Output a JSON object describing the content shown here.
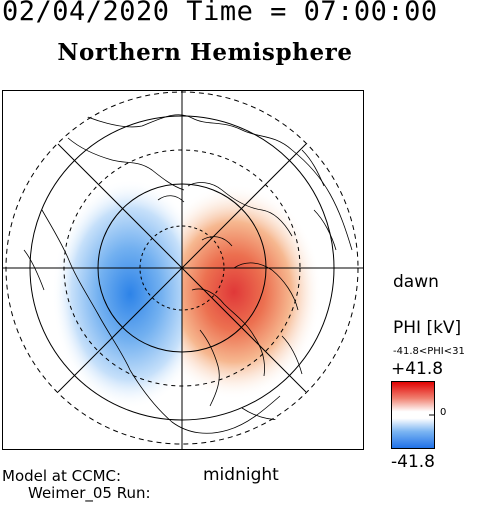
{
  "header": {
    "title": "02/04/2020 Time = 07:00:00",
    "subtitle": "Northern Hemisphere"
  },
  "map": {
    "direction_labels": {
      "dawn": "dawn",
      "midnight": "midnight"
    }
  },
  "colorbar": {
    "title": "PHI [kV]",
    "range_text": "-41.8<PHI<31",
    "max_label": "+41.8",
    "mid_label": "0",
    "min_label": "-41.8",
    "colors": {
      "positive": "#e03030",
      "negative": "#1e6fe0",
      "zero": "#ffffff"
    }
  },
  "footer": {
    "model_line": "Model at CCMC:",
    "run_line": "Weimer_05 Run:"
  }
}
